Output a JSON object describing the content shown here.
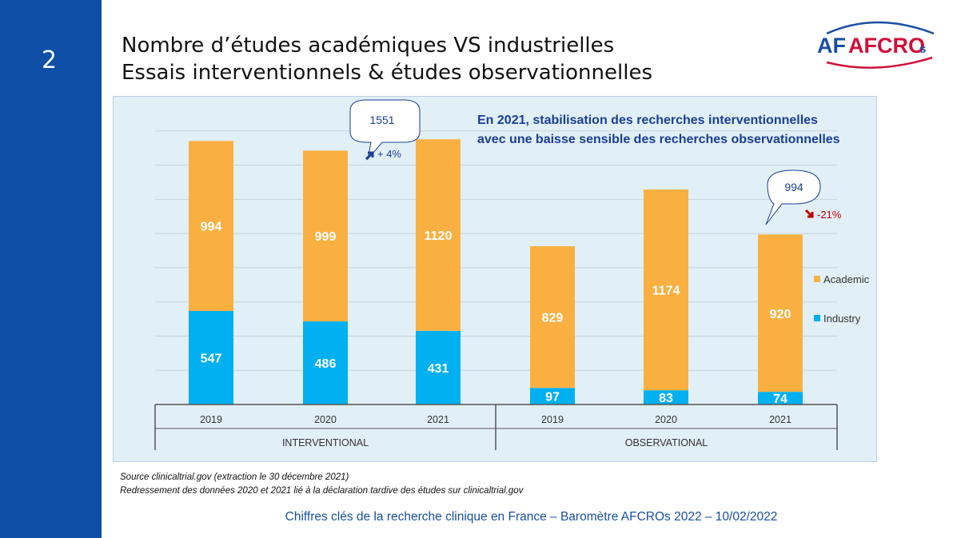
{
  "slide": {
    "number": "2"
  },
  "title": {
    "line1": "Nombre d’études académiques VS industrielles",
    "line2": "Essais interventionnels & études observationnelles"
  },
  "logo": {
    "text_a": "AFCRO",
    "text_s": "s"
  },
  "colors": {
    "band": "#0f4fa8",
    "academic": "#f9b041",
    "industry": "#00b0f0",
    "accent": "#1a3f94",
    "down": "#c00000"
  },
  "annotations": {
    "headline_1": "En 2021, stabilisation des recherches interventionnelles",
    "headline_2": "avec une baisse sensible des recherches observationnelles",
    "bubble_interventional": "1551",
    "change_interventional": "+ 4%",
    "bubble_observational": "994",
    "change_observational": "-21%"
  },
  "chart_data": {
    "type": "bar",
    "stacked": true,
    "groups": [
      {
        "label": "INTERVENTIONAL",
        "categories": [
          "2019",
          "2020",
          "2021"
        ]
      },
      {
        "label": "OBSERVATIONAL",
        "categories": [
          "2019",
          "2020",
          "2021"
        ]
      }
    ],
    "series": [
      {
        "name": "Industry",
        "values": [
          547,
          486,
          431,
          97,
          83,
          74
        ]
      },
      {
        "name": "Academic",
        "values": [
          994,
          999,
          1120,
          829,
          1174,
          920
        ]
      }
    ],
    "ylim": [
      0,
      1800
    ],
    "grid": true,
    "legend": "right"
  },
  "source": {
    "line1": "Source clinicaltrial.gov (extraction le 30 décembre 2021)",
    "line2": "Redressement des données 2020 et 2021 lié à la déclaration tardive des études sur clinicaltrial.gov"
  },
  "footer": "Chiffres clés de la recherche clinique en France – Baromètre AFCROs 2022 – 10/02/2022"
}
